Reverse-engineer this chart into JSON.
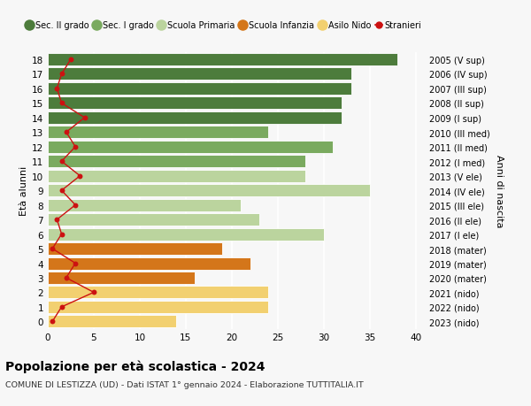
{
  "ages": [
    18,
    17,
    16,
    15,
    14,
    13,
    12,
    11,
    10,
    9,
    8,
    7,
    6,
    5,
    4,
    3,
    2,
    1,
    0
  ],
  "anni_nascita": [
    "2005 (V sup)",
    "2006 (IV sup)",
    "2007 (III sup)",
    "2008 (II sup)",
    "2009 (I sup)",
    "2010 (III med)",
    "2011 (II med)",
    "2012 (I med)",
    "2013 (V ele)",
    "2014 (IV ele)",
    "2015 (III ele)",
    "2016 (II ele)",
    "2017 (I ele)",
    "2018 (mater)",
    "2019 (mater)",
    "2020 (mater)",
    "2021 (nido)",
    "2022 (nido)",
    "2023 (nido)"
  ],
  "bar_values": [
    38,
    33,
    33,
    32,
    32,
    24,
    31,
    28,
    28,
    35,
    21,
    23,
    30,
    19,
    22,
    16,
    24,
    24,
    14
  ],
  "bar_colors": [
    "#4d7c3c",
    "#4d7c3c",
    "#4d7c3c",
    "#4d7c3c",
    "#4d7c3c",
    "#7aaa5f",
    "#7aaa5f",
    "#7aaa5f",
    "#bbd49e",
    "#bbd49e",
    "#bbd49e",
    "#bbd49e",
    "#bbd49e",
    "#d4761a",
    "#d4761a",
    "#d4761a",
    "#f2d070",
    "#f2d070",
    "#f2d070"
  ],
  "stranieri_values": [
    2.5,
    1.5,
    1.0,
    1.5,
    4.0,
    2.0,
    3.0,
    1.5,
    3.5,
    1.5,
    3.0,
    1.0,
    1.5,
    0.5,
    3.0,
    2.0,
    5.0,
    1.5,
    0.5
  ],
  "legend_labels": [
    "Sec. II grado",
    "Sec. I grado",
    "Scuola Primaria",
    "Scuola Infanzia",
    "Asilo Nido",
    "Stranieri"
  ],
  "legend_colors": [
    "#4d7c3c",
    "#7aaa5f",
    "#bbd49e",
    "#d4761a",
    "#f2d070",
    "#cc1111"
  ],
  "ylabel": "Età alunni",
  "ylabel2": "Anni di nascita",
  "title": "Popolazione per età scolastica - 2024",
  "subtitle": "COMUNE DI LESTIZZA (UD) - Dati ISTAT 1° gennaio 2024 - Elaborazione TUTTITALIA.IT",
  "xlim": [
    0,
    41
  ],
  "xticks": [
    0,
    5,
    10,
    15,
    20,
    25,
    30,
    35,
    40
  ],
  "bg_color": "#f7f7f7",
  "bar_height": 0.85
}
